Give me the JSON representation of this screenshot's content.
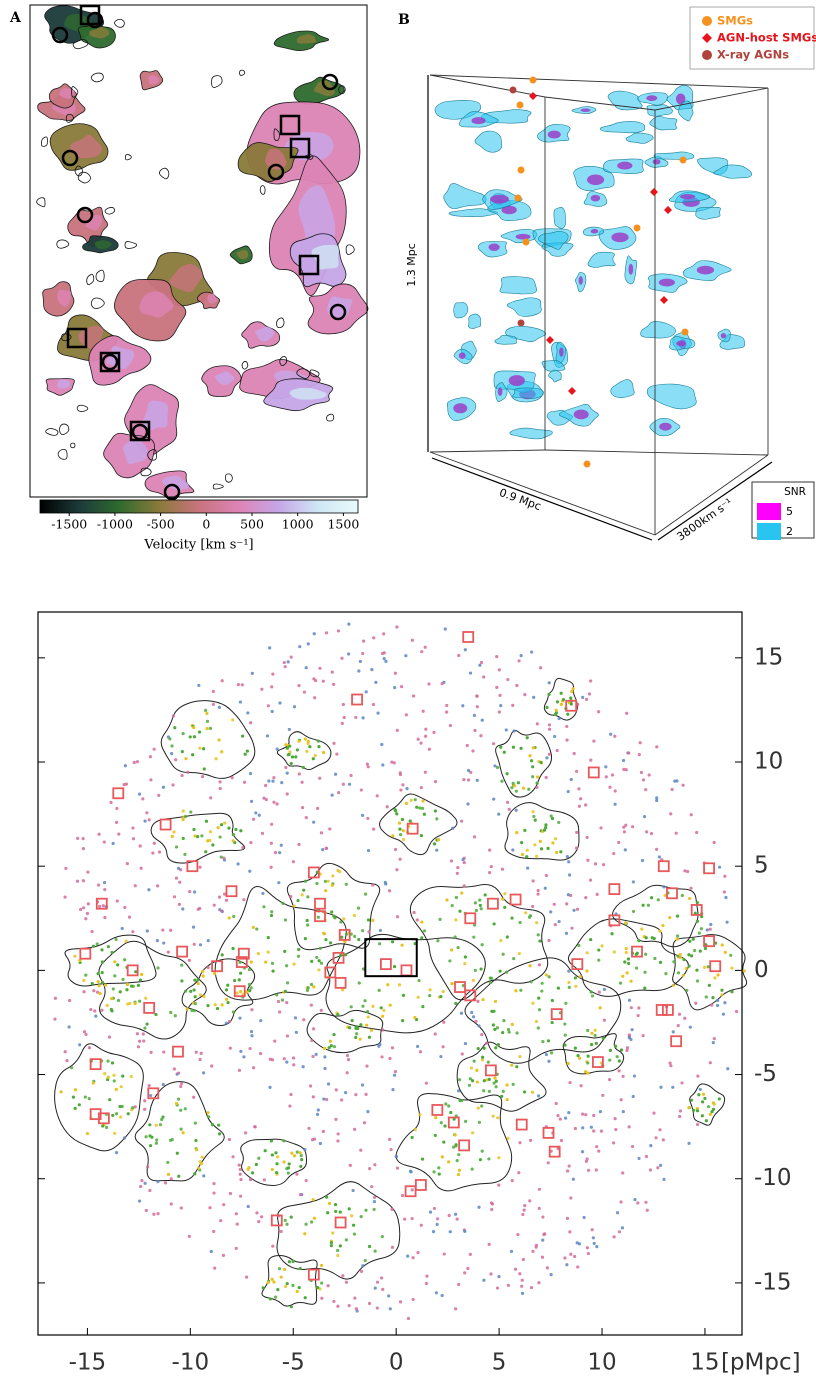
{
  "chart_data": [
    {
      "type": "velocity-map",
      "panel": "A",
      "colorbar": {
        "label": "Velocity [km s⁻¹]",
        "lim": [
          -1820,
          1660
        ],
        "ticks": [
          -1500,
          -1000,
          -500,
          0,
          500,
          1000,
          1500
        ],
        "colormap": [
          "#000000",
          "#1c3b3a",
          "#2f6b2e",
          "#8a7a3a",
          "#c9737e",
          "#dd84b6",
          "#c6a6e8",
          "#cfe6f4",
          "#e8fbfb"
        ]
      }
    },
    {
      "type": "render3d",
      "panel": "B",
      "axis_labels": [
        "1.3 Mpc",
        "0.9 Mpc",
        "3800km s⁻¹"
      ],
      "legend": [
        {
          "name": "SMGs",
          "color": "#f5921e"
        },
        {
          "name": "AGN-host SMGs",
          "color": "#e8141c"
        },
        {
          "name": "X-ray AGNs",
          "color": "#b0443c"
        }
      ],
      "snr_legend": {
        "title": "SNR",
        "series": [
          {
            "name": "5",
            "color": "#ff00ff"
          },
          {
            "name": "2",
            "color": "#29c5f0"
          }
        ]
      }
    },
    {
      "type": "map",
      "xlim": [
        -17.4,
        16.8
      ],
      "ylim": [
        -17.5,
        17.2
      ],
      "xticks": [
        -15,
        -10,
        -5,
        0,
        5,
        10,
        15
      ],
      "yticks": [
        -15,
        -10,
        -5,
        0,
        5,
        10,
        15
      ],
      "xlabel": "[pMpc]"
    }
  ]
}
